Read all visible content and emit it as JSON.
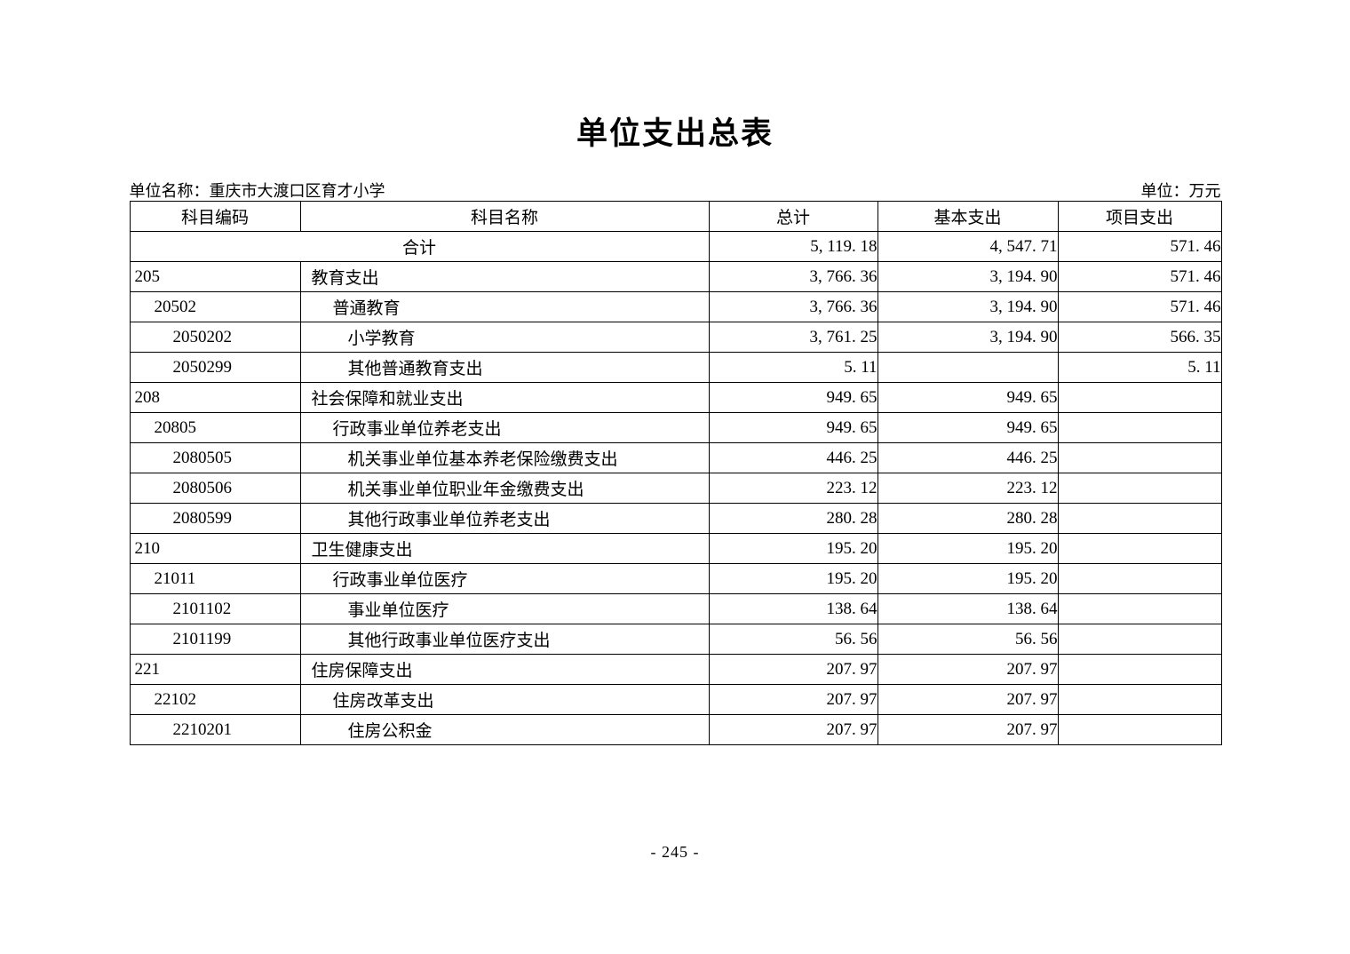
{
  "page": {
    "title": "单位支出总表",
    "unit_name_label": "单位名称：",
    "unit_name_value": "重庆市大渡口区育才小学",
    "unit_measure_label": "单位：",
    "unit_measure_value": "万元",
    "page_number": "- 245 -"
  },
  "table": {
    "columns": [
      "科目编码",
      "科目名称",
      "总计",
      "基本支出",
      "项目支出"
    ],
    "rows": [
      {
        "merged": true,
        "code": "",
        "name": "合计",
        "level": 0,
        "total": "5, 119. 18",
        "basic": "4, 547. 71",
        "project": "571. 46"
      },
      {
        "merged": false,
        "code": "205",
        "name": "教育支出",
        "level": 0,
        "total": "3, 766. 36",
        "basic": "3, 194. 90",
        "project": "571. 46"
      },
      {
        "merged": false,
        "code": "20502",
        "name": "普通教育",
        "level": 1,
        "total": "3, 766. 36",
        "basic": "3, 194. 90",
        "project": "571. 46"
      },
      {
        "merged": false,
        "code": "2050202",
        "name": "小学教育",
        "level": 2,
        "total": "3, 761. 25",
        "basic": "3, 194. 90",
        "project": "566. 35"
      },
      {
        "merged": false,
        "code": "2050299",
        "name": "其他普通教育支出",
        "level": 2,
        "total": "5. 11",
        "basic": "",
        "project": "5. 11"
      },
      {
        "merged": false,
        "code": "208",
        "name": "社会保障和就业支出",
        "level": 0,
        "total": "949. 65",
        "basic": "949. 65",
        "project": ""
      },
      {
        "merged": false,
        "code": "20805",
        "name": "行政事业单位养老支出",
        "level": 1,
        "total": "949. 65",
        "basic": "949. 65",
        "project": ""
      },
      {
        "merged": false,
        "code": "2080505",
        "name": "机关事业单位基本养老保险缴费支出",
        "level": 2,
        "total": "446. 25",
        "basic": "446. 25",
        "project": ""
      },
      {
        "merged": false,
        "code": "2080506",
        "name": "机关事业单位职业年金缴费支出",
        "level": 2,
        "total": "223. 12",
        "basic": "223. 12",
        "project": ""
      },
      {
        "merged": false,
        "code": "2080599",
        "name": "其他行政事业单位养老支出",
        "level": 2,
        "total": "280. 28",
        "basic": "280. 28",
        "project": ""
      },
      {
        "merged": false,
        "code": "210",
        "name": "卫生健康支出",
        "level": 0,
        "total": "195. 20",
        "basic": "195. 20",
        "project": ""
      },
      {
        "merged": false,
        "code": "21011",
        "name": "行政事业单位医疗",
        "level": 1,
        "total": "195. 20",
        "basic": "195. 20",
        "project": ""
      },
      {
        "merged": false,
        "code": "2101102",
        "name": "事业单位医疗",
        "level": 2,
        "total": "138. 64",
        "basic": "138. 64",
        "project": ""
      },
      {
        "merged": false,
        "code": "2101199",
        "name": "其他行政事业单位医疗支出",
        "level": 2,
        "total": "56. 56",
        "basic": "56. 56",
        "project": ""
      },
      {
        "merged": false,
        "code": "221",
        "name": "住房保障支出",
        "level": 0,
        "total": "207. 97",
        "basic": "207. 97",
        "project": ""
      },
      {
        "merged": false,
        "code": "22102",
        "name": "住房改革支出",
        "level": 1,
        "total": "207. 97",
        "basic": "207. 97",
        "project": ""
      },
      {
        "merged": false,
        "code": "2210201",
        "name": "住房公积金",
        "level": 2,
        "total": "207. 97",
        "basic": "207. 97",
        "project": ""
      }
    ]
  }
}
